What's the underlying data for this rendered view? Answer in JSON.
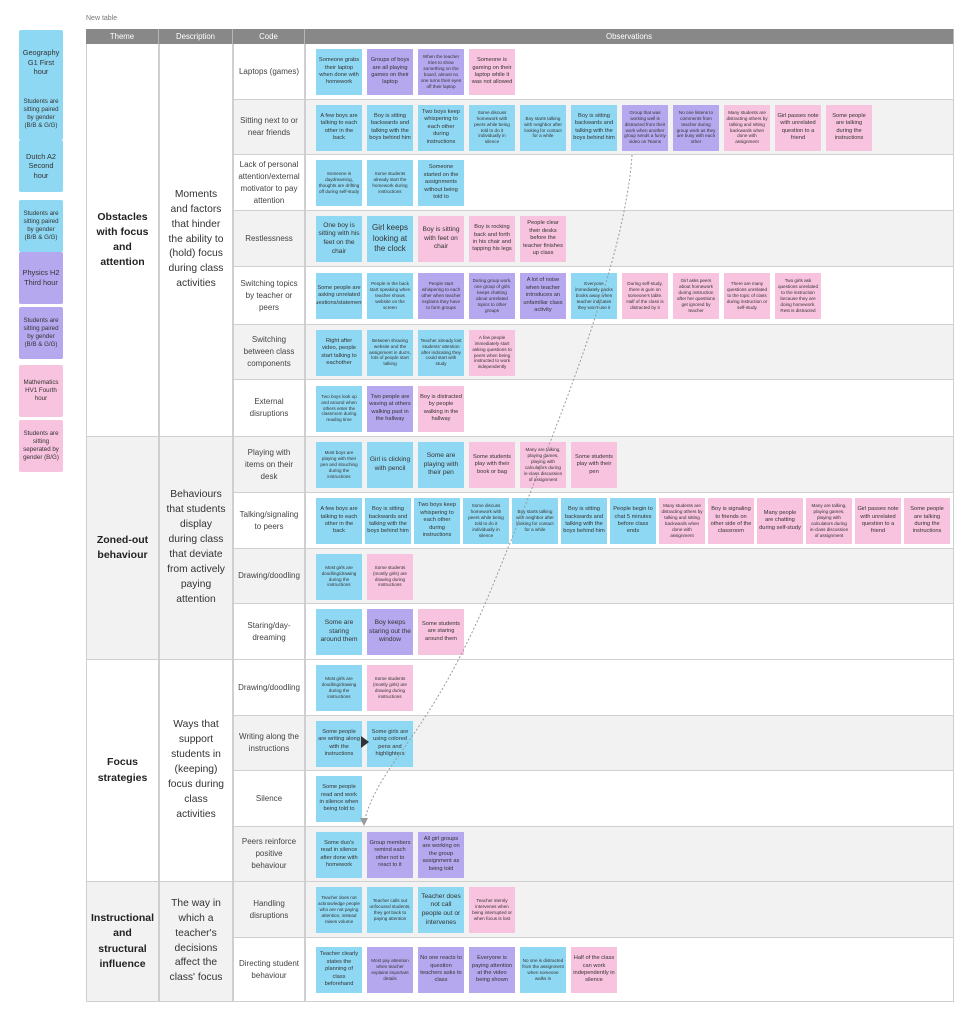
{
  "board": {
    "table_title": "New table"
  },
  "legend": [
    {
      "text": "Geography G1 First hour",
      "color": "blue",
      "big": true
    },
    {
      "text": "Students are sitting paired by gender (B/B & G/G)",
      "color": "blue"
    },
    {
      "text": "Dutch A2 Second hour",
      "color": "blue",
      "big": true
    },
    {
      "text": "Students are sitting paired by gender (B/B & G/G)",
      "color": "blue"
    },
    {
      "text": "Physics H2 Third hour",
      "color": "purple",
      "big": true
    },
    {
      "text": "Students are sitting paired by gender (B/B & G/G)",
      "color": "purple"
    },
    {
      "text": "Mathematics HV1 Fourth hour",
      "color": "pink",
      "big": false
    },
    {
      "text": "Students are sitting seperated by gender (B/G)",
      "color": "pink"
    }
  ],
  "headers": {
    "theme": "Theme",
    "description": "Description",
    "code": "Code",
    "observations": "Observations"
  },
  "themes": [
    {
      "theme": "Obstacles with focus and attention",
      "description": "Moments and factors that hinder the ability to (hold) focus during class activities",
      "codes": [
        {
          "code": "Laptops (games)",
          "notes": [
            {
              "text": "Someone grabs their laptop when done with homework",
              "color": "blue",
              "size": "m"
            },
            {
              "text": "Groups of boys are all playing games on their laptop",
              "color": "purple",
              "size": "m"
            },
            {
              "text": "When the teacher tries to show something on the board, almost no one turns their eyes off their laptop",
              "color": "purple",
              "size": "s"
            },
            {
              "text": "Someone is gaming on their laptop while it was not allowed",
              "color": "pink",
              "size": "m"
            }
          ]
        },
        {
          "code": "Sitting next to or near friends",
          "notes": [
            {
              "text": "A few boys are talking to each other in the back",
              "color": "blue",
              "size": "m"
            },
            {
              "text": "Boy is sitting backwards and talking with the boys behind him",
              "color": "blue",
              "size": "m"
            },
            {
              "text": "Two boys keep whispering to each other during instructions",
              "color": "blue",
              "size": "m"
            },
            {
              "text": "Some discuss homework with peers while being told to do it individually in silence",
              "color": "blue",
              "size": "s"
            },
            {
              "text": "Boy starts talking with neighbor after looking for contact for a while",
              "color": "blue",
              "size": "s"
            },
            {
              "text": "Boy is sitting backwards and talking with the boys behind him",
              "color": "blue",
              "size": "m"
            },
            {
              "text": "Group that was working well is distracted from their work when another group sends a funny video on Teams",
              "color": "purple",
              "size": "s"
            },
            {
              "text": "No one listens to comments from teacher during group work as they are busy with each other",
              "color": "purple",
              "size": "s"
            },
            {
              "text": "Many students are distracting others by talking and sitting backwards when done with assignment",
              "color": "pink",
              "size": "s"
            },
            {
              "text": "Girl passes note with unrelated question to a friend",
              "color": "pink",
              "size": "m"
            },
            {
              "text": "Some people are talking during the instructions",
              "color": "pink",
              "size": "m"
            }
          ]
        },
        {
          "code": "Lack of personal attention/external motivator to pay attention",
          "notes": [
            {
              "text": "Someone is daydreaming, thoughts are drifting off during self-study",
              "color": "blue",
              "size": "s"
            },
            {
              "text": "Some students already start the homework during instructions",
              "color": "blue",
              "size": "s"
            },
            {
              "text": "Someone started on the assignments without being told to",
              "color": "blue",
              "size": "m"
            }
          ]
        },
        {
          "code": "Restlessness",
          "notes": [
            {
              "text": "One boy is sitting with his feet on the chair",
              "color": "blue",
              "size": "l"
            },
            {
              "text": "Girl keeps looking at the clock",
              "color": "blue",
              "size": "xl"
            },
            {
              "text": "Boy is sitting with feet on chair",
              "color": "pink",
              "size": "l"
            },
            {
              "text": "Boy is rocking back and forth in his chair and tapping his legs",
              "color": "pink",
              "size": "m"
            },
            {
              "text": "People clear their desks before the teacher finishes up class",
              "color": "pink",
              "size": "m"
            }
          ]
        },
        {
          "code": "Switching topics by teacher or peers",
          "notes": [
            {
              "text": "Some people are asking unrelated questions/statements",
              "color": "blue",
              "size": "m"
            },
            {
              "text": "People in the back start speaking when teacher shows website on the screen",
              "color": "blue",
              "size": "s"
            },
            {
              "text": "People start whispering to each other when teacher explains they have to form groups",
              "color": "purple",
              "size": "s"
            },
            {
              "text": "During group work, one group of girls keeps chatting about unrelated topics to other groups",
              "color": "purple",
              "size": "s"
            },
            {
              "text": "A lot of noise when teacher introduces an unfamiliar class activity",
              "color": "purple",
              "size": "m"
            },
            {
              "text": "Everyone immediately packs books away when teacher indicates they won't use it",
              "color": "blue",
              "size": "s"
            },
            {
              "text": "During self-study, there is gum on someone's table. Half of the class is distracted by it",
              "color": "pink",
              "size": "s"
            },
            {
              "text": "Girl asks peers about homework during instruction after her questions get ignored by teacher",
              "color": "pink",
              "size": "s"
            },
            {
              "text": "There are many questions unrelated to the topic of class during instruction or self-study",
              "color": "pink",
              "size": "s"
            },
            {
              "text": "Two girls ask questions unrelated to the instruction because they are doing homework. Rest is distracted",
              "color": "pink",
              "size": "s"
            }
          ]
        },
        {
          "code": "Switching between class components",
          "notes": [
            {
              "text": "Right after video, people start talking to eachother",
              "color": "blue",
              "size": "m"
            },
            {
              "text": "Between showing website and the assignment in duo's, lots of people start talking",
              "color": "blue",
              "size": "s"
            },
            {
              "text": "Teacher already lost students' attention after indicating they could start with study",
              "color": "blue",
              "size": "s"
            },
            {
              "text": "A few people immediately start asking questions to peers when being instructed to work independently",
              "color": "pink",
              "size": "s"
            }
          ]
        },
        {
          "code": "External disruptions",
          "notes": [
            {
              "text": "Two boys look up and around when others enter the classroom during reading time",
              "color": "blue",
              "size": "s"
            },
            {
              "text": "Two people are waving at others walking past in the hallway",
              "color": "purple",
              "size": "m"
            },
            {
              "text": "Boy is distracted by people walking in the hallway",
              "color": "pink",
              "size": "m"
            }
          ]
        }
      ]
    },
    {
      "theme": "Zoned-out behaviour",
      "description": "Behaviours that students display during class that deviate from actively paying attention",
      "codes": [
        {
          "code": "Playing with items on their desk",
          "notes": [
            {
              "text": "Most boys are playing with their pen and slouching during the instructions",
              "color": "blue",
              "size": "s"
            },
            {
              "text": "Girl is clicking with pencil",
              "color": "blue",
              "size": "l"
            },
            {
              "text": "Some are playing with their pen",
              "color": "blue",
              "size": "l"
            },
            {
              "text": "Some students play with their book or bag",
              "color": "pink",
              "size": "m"
            },
            {
              "text": "Many are talking, playing games, playing with calculators during in-class discussion of assignment",
              "color": "pink",
              "size": "s"
            },
            {
              "text": "Some students play with their pen",
              "color": "pink",
              "size": "m"
            }
          ]
        },
        {
          "code": "Talking/signaling to peers",
          "notes": [
            {
              "text": "A few boys are talking to each other in the back",
              "color": "blue",
              "size": "m"
            },
            {
              "text": "Boy is sitting backwards and talking with the boys behind him",
              "color": "blue",
              "size": "m"
            },
            {
              "text": "Two boys keep whispering to each other during instructions",
              "color": "blue",
              "size": "m"
            },
            {
              "text": "Some discuss homework with peers while being told to do it individually in silence",
              "color": "blue",
              "size": "s"
            },
            {
              "text": "Boy starts talking with neighbor after looking for contact for a while",
              "color": "blue",
              "size": "s"
            },
            {
              "text": "Boy is sitting backwards and talking with the boys behind him",
              "color": "blue",
              "size": "m"
            },
            {
              "text": "People begin to chat 5 minutes before class ends",
              "color": "blue",
              "size": "m"
            },
            {
              "text": "Many students are distracting others by talking and sitting backwards when done with assignment",
              "color": "pink",
              "size": "s"
            },
            {
              "text": "Boy is signaling to friends on other side of the classroom",
              "color": "pink",
              "size": "m"
            },
            {
              "text": "Many people are chatting during self-study",
              "color": "pink",
              "size": "m"
            },
            {
              "text": "Many are talking, playing games, playing with calculators during in-class discussion of assignment",
              "color": "pink",
              "size": "s"
            },
            {
              "text": "Girl passes note with unrelated question to a friend",
              "color": "pink",
              "size": "m"
            },
            {
              "text": "Some people are talking during the instructions",
              "color": "pink",
              "size": "m"
            }
          ]
        },
        {
          "code": "Drawing/doodling",
          "notes": [
            {
              "text": "Most girls are doodling/drawing during the instructions",
              "color": "blue",
              "size": "s"
            },
            {
              "text": "Some students (mostly girls) are drawing during instructions",
              "color": "pink",
              "size": "s"
            }
          ]
        },
        {
          "code": "Staring/day-dreaming",
          "notes": [
            {
              "text": "Some are staring around them",
              "color": "blue",
              "size": "l"
            },
            {
              "text": "Boy keeps staring out the window",
              "color": "purple",
              "size": "l"
            },
            {
              "text": "Some students are staring around them",
              "color": "pink",
              "size": "m"
            }
          ]
        }
      ]
    },
    {
      "theme": "Focus strategies",
      "description": "Ways that support students in (keeping) focus during class activities",
      "codes": [
        {
          "code": "Drawing/doodling",
          "notes": [
            {
              "text": "Most girls are doodling/drawing during the instructions",
              "color": "blue",
              "size": "s"
            },
            {
              "text": "Some students (mostly girls) are drawing during instructions",
              "color": "pink",
              "size": "s"
            }
          ]
        },
        {
          "code": "Writing along the instructions",
          "notes": [
            {
              "text": "Some people are writing along with the instructions",
              "color": "blue",
              "size": "m"
            },
            {
              "text": "Some girls are using colored pens and highlighters",
              "color": "blue",
              "size": "m"
            }
          ]
        },
        {
          "code": "Silence",
          "notes": [
            {
              "text": "Some people read and work in silence when being told to",
              "color": "blue",
              "size": "m"
            }
          ]
        },
        {
          "code": "Peers reinforce positive behaviour",
          "notes": [
            {
              "text": "Some duo's read in silence after done with homework",
              "color": "blue",
              "size": "m"
            },
            {
              "text": "Group members remind each other not to react to it",
              "color": "purple",
              "size": "m"
            },
            {
              "text": "All girl groups are working on the group assignment as being told",
              "color": "purple",
              "size": "m"
            }
          ]
        }
      ]
    },
    {
      "theme": "Instructional and structural influence",
      "description": "The way in which a teacher's decisions affect the class' focus",
      "codes": [
        {
          "code": "Handling disruptions",
          "notes": [
            {
              "text": "Teacher does not acknowledge people who are not paying attention, instead raises volume",
              "color": "blue",
              "size": "s"
            },
            {
              "text": "Teacher calls out unfocused students, they get back to paying attention",
              "color": "blue",
              "size": "s"
            },
            {
              "text": "Teacher does not call people out or intervenes",
              "color": "blue",
              "size": "l"
            },
            {
              "text": "Teacher sternly intervenes when being interrupted or when focus is lost",
              "color": "pink",
              "size": "s"
            }
          ]
        },
        {
          "code": "Directing student behaviour",
          "notes": [
            {
              "text": "Teacher clearly states the planning of class beforehand",
              "color": "blue",
              "size": "m"
            },
            {
              "text": "Most pay attention when teacher explains important details",
              "color": "purple",
              "size": "s"
            },
            {
              "text": "No one reacts to question teachers asks to class",
              "color": "purple",
              "size": "m"
            },
            {
              "text": "Everyone is paying attention at the video being shown",
              "color": "purple",
              "size": "m"
            },
            {
              "text": "No one is distracted from the assignment when someone walks in",
              "color": "blue",
              "size": "s"
            },
            {
              "text": "Half of the class can work independently in silence",
              "color": "pink",
              "size": "m"
            }
          ]
        }
      ]
    }
  ],
  "colors": {
    "blue": "#8fd8f3",
    "purple": "#b6a8ee",
    "pink": "#f8c3de",
    "header": "#888888"
  },
  "icons": {
    "connector": "dotted-arrow",
    "triangle": "arrow-right-icon"
  }
}
